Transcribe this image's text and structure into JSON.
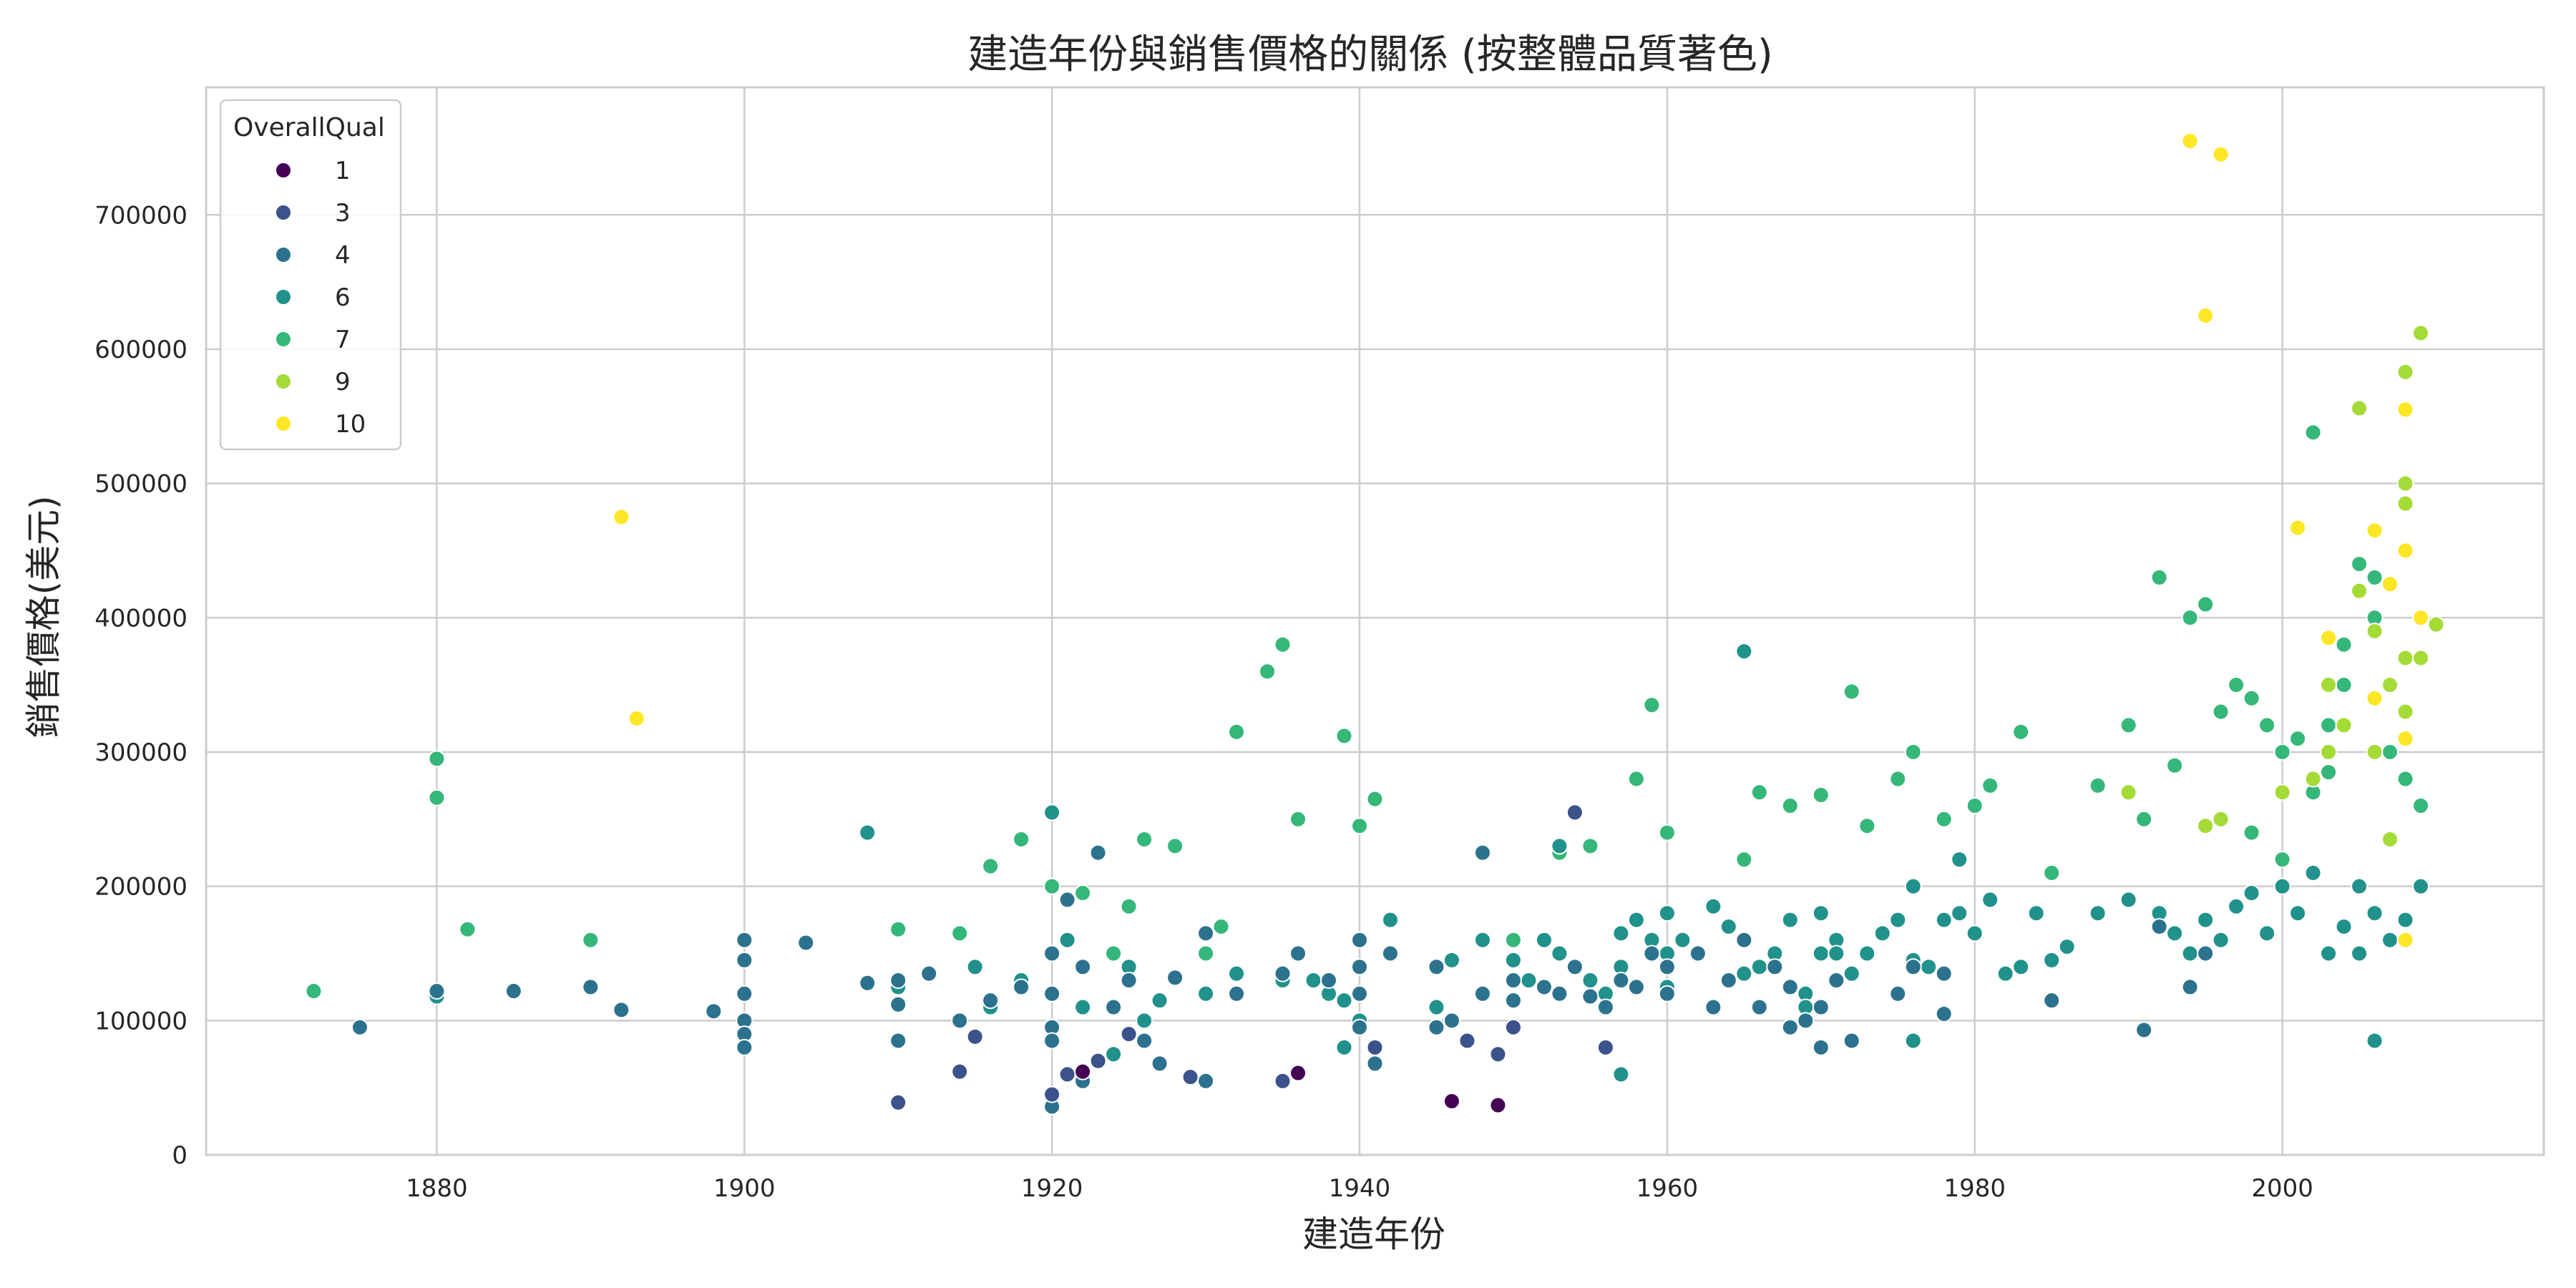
{
  "chart_data": {
    "type": "scatter",
    "title": "建造年份與銷售價格的關係 (按整體品質著色)",
    "xlabel": "建造年份",
    "ylabel": "銷售價格(美元)",
    "xlim": [
      1865,
      2017
    ],
    "ylim": [
      0,
      795000
    ],
    "xticks": [
      "1880",
      "1900",
      "1920",
      "1940",
      "1960",
      "1980",
      "2000"
    ],
    "xtick_values": [
      1880,
      1900,
      1920,
      1940,
      1960,
      1980,
      2000
    ],
    "yticks": [
      "0",
      "100000",
      "200000",
      "300000",
      "400000",
      "500000",
      "600000",
      "700000"
    ],
    "ytick_values": [
      0,
      100000,
      200000,
      300000,
      400000,
      500000,
      600000,
      700000
    ],
    "grid": true,
    "legend": {
      "title": "OverallQual",
      "placement": "top-left",
      "entries": [
        {
          "label": "1",
          "color": "#440154"
        },
        {
          "label": "3",
          "color": "#3b528b"
        },
        {
          "label": "4",
          "color": "#2c728e"
        },
        {
          "label": "6",
          "color": "#21918c"
        },
        {
          "label": "7",
          "color": "#35b779"
        },
        {
          "label": "9",
          "color": "#a5db36"
        },
        {
          "label": "10",
          "color": "#fde725"
        }
      ]
    },
    "series": [
      {
        "name": "1",
        "color": "#440154",
        "x": [
          1946,
          1949,
          1936,
          1922
        ],
        "y": [
          40000,
          37000,
          61000,
          62000
        ]
      },
      {
        "name": "3",
        "color": "#3b528b",
        "x": [
          1910,
          1914,
          1915,
          1920,
          1921,
          1923,
          1929,
          1935,
          1941,
          1947,
          1950,
          1954,
          1956,
          1949,
          1925
        ],
        "y": [
          39000,
          62000,
          88000,
          45000,
          60000,
          70000,
          58000,
          55000,
          80000,
          85000,
          95000,
          255000,
          80000,
          75000,
          90000
        ]
      },
      {
        "name": "4",
        "color": "#2c728e",
        "x": [
          1875,
          1880,
          1885,
          1890,
          1892,
          1898,
          1900,
          1900,
          1900,
          1900,
          1900,
          1900,
          1904,
          1908,
          1910,
          1910,
          1910,
          1912,
          1914,
          1916,
          1918,
          1920,
          1920,
          1920,
          1920,
          1921,
          1922,
          1923,
          1924,
          1925,
          1926,
          1927,
          1928,
          1930,
          1930,
          1932,
          1935,
          1936,
          1938,
          1940,
          1940,
          1940,
          1940,
          1941,
          1942,
          1945,
          1946,
          1948,
          1950,
          1950,
          1952,
          1953,
          1954,
          1955,
          1956,
          1957,
          1958,
          1959,
          1960,
          1960,
          1962,
          1963,
          1964,
          1965,
          1966,
          1967,
          1968,
          1969,
          1970,
          1970,
          1971,
          1972,
          1975,
          1976,
          1978,
          1985,
          1991,
          1992,
          1994,
          1995,
          1920,
          1922,
          1945,
          1948,
          1968,
          1978
        ],
        "y": [
          95000,
          122000,
          122000,
          125000,
          108000,
          107000,
          160000,
          145000,
          120000,
          100000,
          90000,
          80000,
          158000,
          128000,
          130000,
          112000,
          85000,
          135000,
          100000,
          115000,
          125000,
          150000,
          120000,
          95000,
          36000,
          190000,
          140000,
          225000,
          110000,
          130000,
          85000,
          68000,
          132000,
          165000,
          55000,
          120000,
          135000,
          150000,
          130000,
          160000,
          140000,
          120000,
          95000,
          68000,
          150000,
          140000,
          100000,
          225000,
          130000,
          115000,
          125000,
          120000,
          140000,
          118000,
          110000,
          130000,
          125000,
          150000,
          140000,
          120000,
          150000,
          110000,
          130000,
          160000,
          110000,
          140000,
          125000,
          100000,
          110000,
          80000,
          130000,
          85000,
          120000,
          140000,
          105000,
          115000,
          93000,
          170000,
          125000,
          150000,
          85000,
          55000,
          95000,
          120000,
          95000,
          135000
        ]
      },
      {
        "name": "6",
        "color": "#21918c",
        "x": [
          1880,
          1908,
          1910,
          1915,
          1916,
          1918,
          1920,
          1921,
          1922,
          1924,
          1925,
          1926,
          1927,
          1930,
          1932,
          1935,
          1937,
          1938,
          1939,
          1940,
          1940,
          1942,
          1945,
          1946,
          1948,
          1950,
          1951,
          1952,
          1953,
          1954,
          1955,
          1956,
          1957,
          1957,
          1958,
          1959,
          1960,
          1960,
          1960,
          1961,
          1962,
          1963,
          1964,
          1965,
          1965,
          1966,
          1967,
          1968,
          1969,
          1970,
          1970,
          1971,
          1972,
          1973,
          1974,
          1975,
          1976,
          1976,
          1977,
          1978,
          1979,
          1980,
          1981,
          1982,
          1983,
          1984,
          1985,
          1986,
          1988,
          1990,
          1992,
          1993,
          1994,
          1995,
          1996,
          1997,
          1998,
          1999,
          2000,
          2001,
          2002,
          2003,
          2004,
          2005,
          2005,
          2006,
          2006,
          2007,
          2008,
          2009,
          1965,
          1953,
          1957,
          1976,
          1969,
          1979,
          1920,
          1939,
          1971
        ],
        "y": [
          118000,
          240000,
          125000,
          140000,
          110000,
          130000,
          255000,
          160000,
          110000,
          75000,
          140000,
          100000,
          115000,
          120000,
          135000,
          130000,
          130000,
          120000,
          115000,
          140000,
          100000,
          175000,
          110000,
          145000,
          160000,
          145000,
          130000,
          160000,
          150000,
          140000,
          130000,
          120000,
          165000,
          140000,
          175000,
          160000,
          180000,
          150000,
          125000,
          160000,
          150000,
          185000,
          170000,
          160000,
          135000,
          140000,
          150000,
          175000,
          120000,
          150000,
          180000,
          160000,
          135000,
          150000,
          165000,
          175000,
          145000,
          200000,
          140000,
          175000,
          180000,
          165000,
          190000,
          135000,
          140000,
          180000,
          145000,
          155000,
          180000,
          190000,
          180000,
          165000,
          150000,
          175000,
          160000,
          185000,
          195000,
          165000,
          200000,
          180000,
          210000,
          150000,
          170000,
          200000,
          150000,
          180000,
          85000,
          160000,
          175000,
          200000,
          375000,
          230000,
          60000,
          85000,
          110000,
          220000,
          150000,
          80000,
          150000
        ]
      },
      {
        "name": "7",
        "color": "#35b779",
        "x": [
          1872,
          1880,
          1880,
          1882,
          1890,
          1910,
          1914,
          1916,
          1918,
          1920,
          1922,
          1924,
          1925,
          1926,
          1928,
          1930,
          1931,
          1932,
          1934,
          1935,
          1936,
          1939,
          1940,
          1941,
          1950,
          1953,
          1955,
          1958,
          1959,
          1960,
          1965,
          1966,
          1968,
          1970,
          1972,
          1973,
          1975,
          1976,
          1978,
          1980,
          1981,
          1983,
          1985,
          1988,
          1990,
          1991,
          1992,
          1993,
          1994,
          1995,
          1996,
          1997,
          1998,
          1999,
          2000,
          2001,
          2002,
          2003,
          2004,
          2005,
          2006,
          2007,
          2008,
          2009,
          2002,
          2004,
          2006,
          1998,
          2000,
          2003
        ],
        "y": [
          122000,
          295000,
          266000,
          168000,
          160000,
          168000,
          165000,
          215000,
          235000,
          200000,
          195000,
          150000,
          185000,
          235000,
          230000,
          150000,
          170000,
          315000,
          360000,
          380000,
          250000,
          312000,
          245000,
          265000,
          160000,
          225000,
          230000,
          280000,
          335000,
          240000,
          220000,
          270000,
          260000,
          268000,
          345000,
          245000,
          280000,
          300000,
          250000,
          260000,
          275000,
          315000,
          210000,
          275000,
          320000,
          250000,
          430000,
          290000,
          400000,
          410000,
          330000,
          350000,
          340000,
          320000,
          300000,
          310000,
          270000,
          320000,
          350000,
          440000,
          400000,
          300000,
          280000,
          260000,
          538000,
          380000,
          430000,
          240000,
          220000,
          285000
        ]
      },
      {
        "name": "9",
        "color": "#a5db36",
        "x": [
          1996,
          2000,
          2002,
          2003,
          2004,
          2005,
          2005,
          2006,
          2006,
          2007,
          2008,
          2008,
          2008,
          2008,
          2008,
          2008,
          2009,
          2009,
          2010,
          1990,
          1995,
          2007,
          2003
        ],
        "y": [
          250000,
          270000,
          280000,
          350000,
          320000,
          420000,
          556000,
          390000,
          300000,
          350000,
          583000,
          500000,
          485000,
          450000,
          370000,
          330000,
          612000,
          370000,
          395000,
          270000,
          245000,
          235000,
          300000
        ]
      },
      {
        "name": "10",
        "color": "#fde725",
        "x": [
          1892,
          1893,
          1994,
          1995,
          1996,
          2001,
          2003,
          2006,
          2007,
          2008,
          2008,
          2008,
          2009,
          2008,
          2006
        ],
        "y": [
          475000,
          325000,
          755000,
          625000,
          745000,
          467000,
          385000,
          465000,
          425000,
          555000,
          450000,
          160000,
          400000,
          310000,
          340000
        ]
      }
    ]
  }
}
